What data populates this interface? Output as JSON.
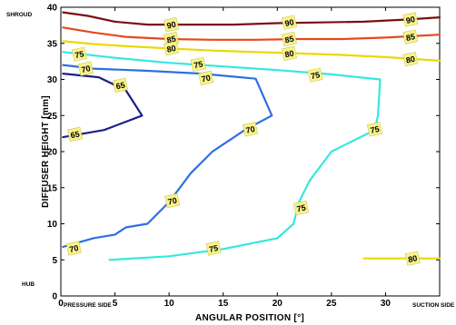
{
  "chart_data": {
    "type": "line",
    "xlabel": "ANGULAR POSITION [°]",
    "ylabel": "DIFFUSER HEIGHT [mm]",
    "xlim": [
      0,
      35
    ],
    "ylim": [
      0,
      40
    ],
    "xticks": [
      0,
      5,
      10,
      15,
      20,
      25,
      30
    ],
    "yticks": [
      0,
      5,
      10,
      15,
      20,
      25,
      30,
      35,
      40
    ],
    "grid": false,
    "corner_labels": {
      "top_left": "SHROUD",
      "bottom_left": "HUB",
      "bottom_left_x": "PRESSURE SIDE",
      "bottom_right_x": "SUCTION SIDE"
    },
    "series": [
      {
        "name": "90",
        "color": "#7a0f12",
        "x": [
          0.2,
          2.5,
          5,
          8,
          12,
          16,
          20,
          24,
          28,
          32,
          35
        ],
        "y": [
          39.3,
          38.8,
          38.0,
          37.6,
          37.6,
          37.6,
          37.8,
          37.9,
          38.0,
          38.3,
          38.6
        ],
        "labels": [
          {
            "text": "90",
            "x": 10.2,
            "y": 37.6
          },
          {
            "text": "90",
            "x": 21.1,
            "y": 37.9
          },
          {
            "text": "90",
            "x": 32.3,
            "y": 38.3
          }
        ]
      },
      {
        "name": "85",
        "color": "#e8481b",
        "x": [
          0.2,
          3,
          6,
          10,
          14,
          18,
          22,
          26,
          30,
          35
        ],
        "y": [
          37.2,
          36.5,
          35.9,
          35.6,
          35.5,
          35.5,
          35.6,
          35.6,
          35.8,
          36.2
        ],
        "labels": [
          {
            "text": "85",
            "x": 10.2,
            "y": 35.6
          },
          {
            "text": "85",
            "x": 21.1,
            "y": 35.6
          },
          {
            "text": "85",
            "x": 32.3,
            "y": 35.9
          }
        ]
      },
      {
        "name": "80",
        "color": "#ecd800",
        "x": [
          0.2,
          3,
          6,
          10,
          14,
          18,
          22,
          26,
          30,
          35
        ],
        "y": [
          35.3,
          34.9,
          34.6,
          34.3,
          34.0,
          33.8,
          33.6,
          33.4,
          33.1,
          32.6
        ],
        "labels": [
          {
            "text": "80",
            "x": 10.2,
            "y": 34.3
          },
          {
            "text": "80",
            "x": 21.1,
            "y": 33.6
          },
          {
            "text": "80",
            "x": 32.3,
            "y": 32.8
          }
        ]
      },
      {
        "name": "75",
        "color": "#35e8de",
        "x": [
          0.2,
          5,
          10,
          15,
          20,
          25,
          29.5,
          29.3,
          29.0,
          27,
          25,
          23,
          22,
          21.5,
          20,
          15,
          10,
          4.5
        ],
        "y": [
          33.8,
          33.0,
          32.3,
          31.8,
          31.3,
          30.7,
          30.0,
          25.0,
          23.0,
          21.5,
          20.0,
          16.0,
          13.0,
          10.0,
          8.0,
          6.5,
          5.5,
          5.0
        ],
        "labels": [
          {
            "text": "75",
            "x": 1.7,
            "y": 33.5
          },
          {
            "text": "75",
            "x": 12.7,
            "y": 32.1
          },
          {
            "text": "75",
            "x": 23.5,
            "y": 30.6
          },
          {
            "text": "75",
            "x": 29.0,
            "y": 23.1
          },
          {
            "text": "75",
            "x": 22.2,
            "y": 12.2
          },
          {
            "text": "75",
            "x": 14.1,
            "y": 6.6
          }
        ]
      },
      {
        "name": "80",
        "color": "#ecd800",
        "x": [
          28,
          35
        ],
        "y": [
          5.2,
          5.2
        ],
        "labels": [
          {
            "text": "80",
            "x": 32.5,
            "y": 5.2
          }
        ]
      },
      {
        "name": "70",
        "color": "#2e6fe0",
        "x": [
          0.2,
          3,
          8,
          13,
          18,
          19.5,
          17,
          14,
          12,
          10,
          8,
          6,
          5,
          3,
          0.2
        ],
        "y": [
          32.0,
          31.5,
          31.2,
          30.8,
          30.1,
          25.0,
          23.0,
          20.0,
          17.0,
          13.0,
          10.0,
          9.5,
          8.5,
          8.0,
          6.8
        ],
        "labels": [
          {
            "text": "70",
            "x": 2.3,
            "y": 31.5
          },
          {
            "text": "70",
            "x": 13.4,
            "y": 30.2
          },
          {
            "text": "70",
            "x": 17.5,
            "y": 23.1
          },
          {
            "text": "70",
            "x": 10.3,
            "y": 13.2
          },
          {
            "text": "70",
            "x": 1.2,
            "y": 6.6
          }
        ]
      },
      {
        "name": "65",
        "color": "#1a1f8a",
        "x": [
          0.2,
          3.5,
          6,
          7.5,
          4,
          0.2
        ],
        "y": [
          30.8,
          30.3,
          28.5,
          25.0,
          23.0,
          22.0
        ],
        "labels": [
          {
            "text": "65",
            "x": 5.5,
            "y": 29.2
          },
          {
            "text": "65",
            "x": 1.3,
            "y": 22.4
          }
        ]
      }
    ]
  }
}
